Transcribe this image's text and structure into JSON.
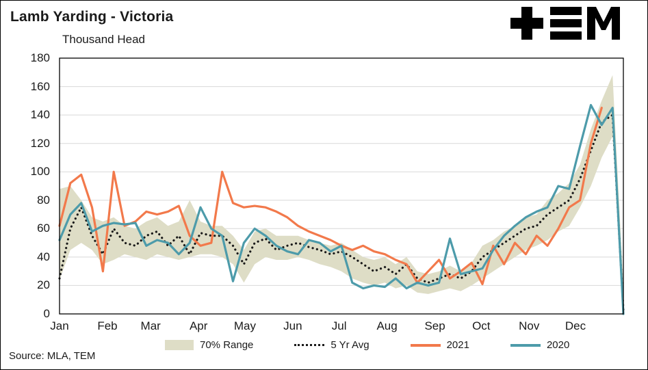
{
  "header": {
    "title": "Lamb Yarding - Victoria",
    "subtitle": "Thousand Head"
  },
  "source": {
    "text": "Source: MLA, TEM"
  },
  "logo": {
    "name": "TEM",
    "color": "#000000"
  },
  "chart_data": {
    "type": "line",
    "title": "Lamb Yarding - Victoria",
    "ylabel": "Thousand Head",
    "xlabel": "",
    "ylim": [
      0,
      180
    ],
    "ytick_step": 20,
    "grid": "horizontal",
    "legend_position": "bottom",
    "x_unit": "weekly, Jan-Dec",
    "months": [
      "Jan",
      "Feb",
      "Mar",
      "Apr",
      "May",
      "Jun",
      "Jul",
      "Aug",
      "Sep",
      "Oct",
      "Nov",
      "Dec"
    ],
    "band": {
      "name": "70% Range",
      "color": "#DEDDC6",
      "upper": [
        88,
        90,
        80,
        68,
        65,
        68,
        62,
        60,
        65,
        68,
        62,
        65,
        80,
        65,
        62,
        62,
        55,
        45,
        58,
        60,
        55,
        55,
        55,
        52,
        50,
        48,
        50,
        45,
        40,
        38,
        40,
        35,
        40,
        30,
        28,
        30,
        34,
        30,
        36,
        48,
        52,
        58,
        62,
        68,
        70,
        80,
        85,
        92,
        105,
        130,
        150,
        168,
        20
      ],
      "lower": [
        24,
        45,
        50,
        45,
        35,
        38,
        42,
        40,
        38,
        42,
        40,
        38,
        40,
        42,
        42,
        40,
        35,
        22,
        35,
        40,
        38,
        38,
        40,
        38,
        35,
        33,
        30,
        25,
        22,
        20,
        22,
        18,
        20,
        15,
        14,
        16,
        18,
        16,
        20,
        25,
        30,
        35,
        40,
        45,
        48,
        52,
        58,
        62,
        75,
        90,
        110,
        125,
        2
      ]
    },
    "series": [
      {
        "name": "5 Yr Avg",
        "color": "#1a1a1a",
        "style": "dotted",
        "values": [
          25,
          60,
          75,
          55,
          42,
          60,
          50,
          48,
          55,
          58,
          48,
          55,
          42,
          57,
          55,
          55,
          48,
          35,
          50,
          53,
          45,
          48,
          50,
          47,
          45,
          42,
          44,
          40,
          35,
          30,
          33,
          28,
          35,
          25,
          22,
          25,
          28,
          25,
          30,
          40,
          45,
          50,
          55,
          60,
          62,
          70,
          75,
          80,
          95,
          115,
          135,
          140,
          3
        ]
      },
      {
        "name": "2021",
        "color": "#F2794B",
        "style": "solid",
        "values": [
          62,
          92,
          98,
          75,
          30,
          100,
          62,
          65,
          72,
          70,
          72,
          76,
          55,
          48,
          50,
          100,
          78,
          75,
          76,
          75,
          72,
          68,
          62,
          58,
          55,
          52,
          48,
          45,
          48,
          44,
          42,
          38,
          35,
          22,
          30,
          38,
          25,
          30,
          36,
          21,
          48,
          35,
          50,
          42,
          55,
          48,
          60,
          75,
          80,
          120,
          145
        ]
      },
      {
        "name": "2020",
        "color": "#4D9BAA",
        "style": "solid",
        "values": [
          52,
          70,
          78,
          58,
          62,
          64,
          63,
          64,
          48,
          52,
          50,
          42,
          50,
          75,
          60,
          55,
          23,
          50,
          60,
          55,
          48,
          44,
          42,
          52,
          50,
          44,
          48,
          22,
          18,
          20,
          19,
          25,
          18,
          22,
          20,
          22,
          53,
          28,
          30,
          32,
          45,
          55,
          62,
          68,
          72,
          75,
          90,
          88,
          118,
          147,
          133,
          145,
          0
        ]
      }
    ]
  }
}
